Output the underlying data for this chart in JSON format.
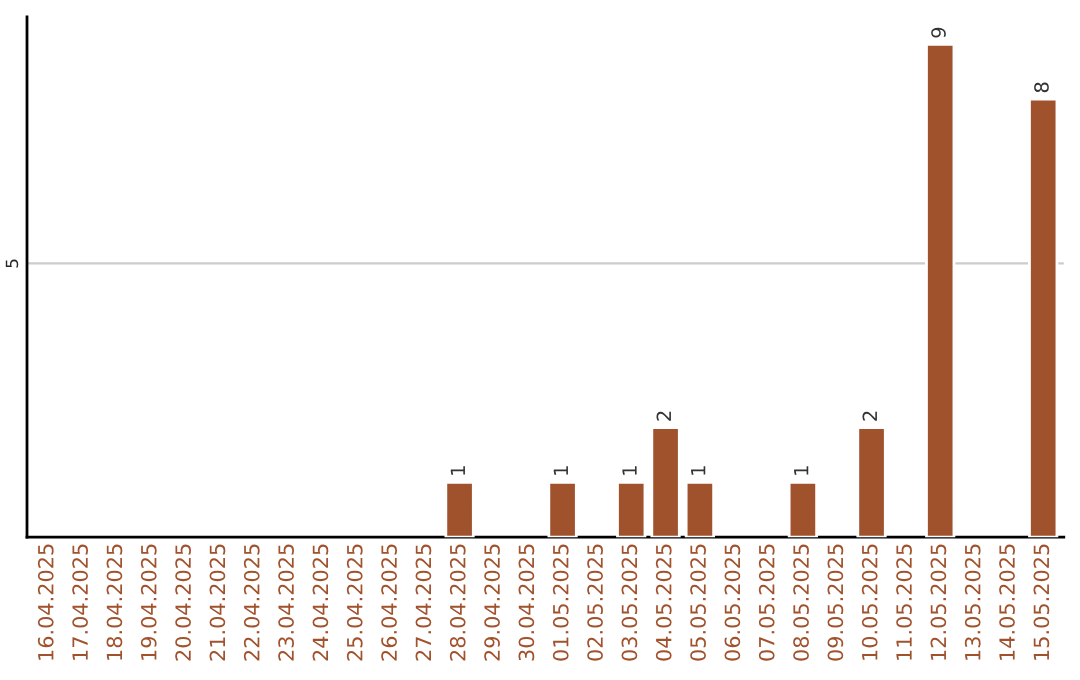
{
  "chart_data": {
    "type": "bar",
    "categories": [
      "16.04.2025",
      "17.04.2025",
      "18.04.2025",
      "19.04.2025",
      "20.04.2025",
      "21.04.2025",
      "22.04.2025",
      "23.04.2025",
      "24.04.2025",
      "25.04.2025",
      "26.04.2025",
      "27.04.2025",
      "28.04.2025",
      "29.04.2025",
      "30.04.2025",
      "01.05.2025",
      "02.05.2025",
      "03.05.2025",
      "04.05.2025",
      "05.05.2025",
      "06.05.2025",
      "07.05.2025",
      "08.05.2025",
      "09.05.2025",
      "10.05.2025",
      "11.05.2025",
      "12.05.2025",
      "13.05.2025",
      "14.05.2025",
      "15.05.2025"
    ],
    "values": [
      null,
      null,
      null,
      null,
      null,
      null,
      null,
      null,
      null,
      null,
      null,
      null,
      1,
      null,
      null,
      1,
      null,
      1,
      2,
      1,
      null,
      null,
      1,
      null,
      2,
      null,
      9,
      null,
      null,
      8
    ],
    "color": "#a0522d",
    "ylim": [
      0,
      9.5
    ],
    "yticks": [
      5
    ],
    "grid": "y",
    "data_labels": true
  }
}
